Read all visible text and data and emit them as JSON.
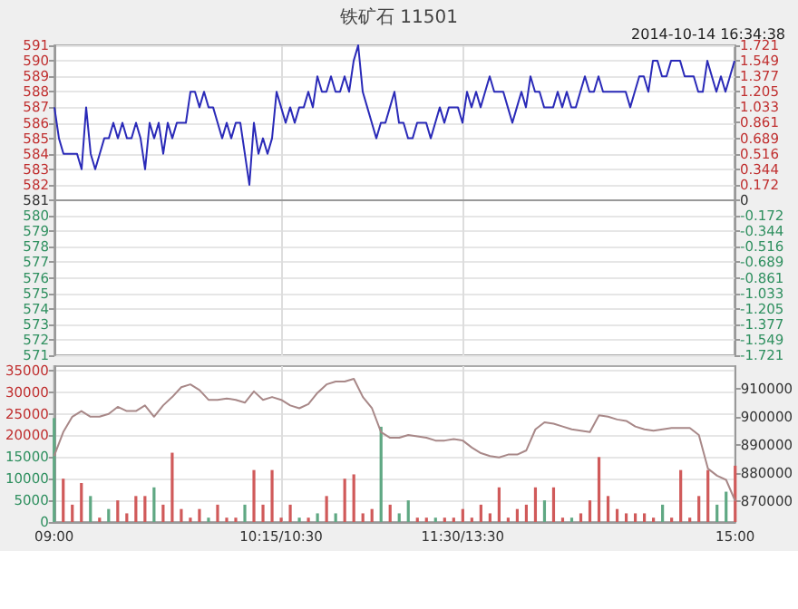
{
  "chart_data": [
    {
      "type": "line",
      "title": "铁矿石 11501",
      "subtitle": "2014-10-14 16:34:38",
      "categories": [
        null,
        null,
        null,
        null,
        null,
        null,
        null,
        null,
        null,
        null,
        null,
        null,
        null,
        null,
        null,
        null,
        null,
        null,
        null,
        null,
        null,
        null,
        null,
        null,
        null,
        null,
        null,
        null,
        null,
        null,
        null,
        null,
        null,
        null,
        null,
        null,
        null,
        null,
        null,
        null,
        null,
        null,
        null,
        null,
        null,
        null,
        null,
        null,
        null,
        null,
        null,
        null,
        null,
        null,
        null,
        null,
        null,
        null,
        null,
        null,
        null,
        null,
        null,
        null,
        null,
        null,
        null,
        null,
        null,
        null,
        null,
        null,
        null,
        null,
        null,
        null,
        null,
        null,
        null,
        null,
        null,
        null,
        null,
        null,
        null,
        null,
        null,
        null,
        null,
        null,
        null,
        null,
        null,
        null,
        null,
        null,
        null,
        null,
        null,
        null,
        null,
        null,
        null,
        null,
        null,
        null,
        null,
        null,
        null,
        null,
        null,
        null,
        null,
        null,
        null,
        null,
        null,
        null,
        null,
        null,
        null,
        null,
        null,
        null,
        null,
        null,
        null,
        null,
        null,
        null,
        null,
        null,
        null,
        null,
        null,
        null,
        null,
        null,
        null,
        null,
        null,
        null,
        null,
        null,
        null,
        null,
        null,
        null,
        null,
        null,
        null
      ],
      "series": [
        {
          "color": "#2a2ab8",
          "values": [
            587,
            585,
            584,
            584,
            584,
            584,
            583,
            587,
            584,
            583,
            584,
            585,
            585,
            586,
            585,
            586,
            585,
            585,
            586,
            585,
            583,
            586,
            585,
            586,
            584,
            586,
            585,
            586,
            586,
            586,
            588,
            588,
            587,
            588,
            587,
            587,
            586,
            585,
            586,
            585,
            586,
            586,
            584,
            582,
            586,
            584,
            585,
            584,
            585,
            588,
            587,
            586,
            587,
            586,
            587,
            587,
            588,
            587,
            589,
            588,
            588,
            589,
            588,
            588,
            589,
            588,
            590,
            591,
            588,
            587,
            586,
            585,
            586,
            586,
            587,
            588,
            586,
            586,
            585,
            585,
            586,
            586,
            586,
            585,
            586,
            587,
            586,
            587,
            587,
            587,
            586,
            588,
            587,
            588,
            587,
            588,
            589,
            588,
            588,
            588,
            587,
            586,
            587,
            588,
            587,
            589,
            588,
            588,
            587,
            587,
            587,
            588,
            587,
            588,
            587,
            587,
            588,
            589,
            588,
            588,
            589,
            588,
            588,
            588,
            588,
            588,
            588,
            587,
            588,
            589,
            589,
            588,
            590,
            590,
            589,
            589,
            590,
            590,
            590,
            589,
            589,
            589,
            588,
            588,
            590,
            589,
            588,
            589,
            588,
            589,
            590
          ]
        }
      ],
      "ylim": [
        571,
        591
      ],
      "yticks": [
        571,
        572,
        573,
        574,
        575,
        576,
        577,
        578,
        579,
        580,
        581,
        582,
        583,
        584,
        585,
        586,
        587,
        588,
        589,
        590,
        591
      ],
      "y2lim": [
        -1.721,
        1.721
      ],
      "y2ticks": [
        -1.721,
        -1.549,
        -1.377,
        -1.205,
        -1.033,
        -0.861,
        -0.689,
        -0.516,
        -0.344,
        -0.172,
        0,
        0.172,
        0.344,
        0.516,
        0.689,
        0.861,
        1.033,
        1.205,
        1.377,
        1.549,
        1.721
      ],
      "grid": true,
      "tick_labels": "y"
    },
    {
      "type": "bar",
      "categories": [
        "09:00",
        null,
        null,
        null,
        null,
        null,
        null,
        null,
        null,
        null,
        null,
        null,
        null,
        null,
        null,
        null,
        null,
        null,
        null,
        null,
        null,
        null,
        null,
        null,
        null,
        "10:15/10:30",
        null,
        null,
        null,
        null,
        null,
        null,
        null,
        null,
        null,
        null,
        null,
        null,
        null,
        null,
        null,
        null,
        null,
        null,
        null,
        "11:30/13:30",
        null,
        null,
        null,
        null,
        null,
        null,
        null,
        null,
        null,
        null,
        null,
        null,
        null,
        null,
        null,
        null,
        null,
        null,
        null,
        null,
        null,
        null,
        null,
        null,
        null,
        null,
        null,
        null,
        null,
        "15:00"
      ],
      "series": [
        {
          "type": "bar",
          "values": [
            24000,
            10000,
            4000,
            9000,
            6000,
            1000,
            3000,
            5000,
            2000,
            6000,
            6000,
            8000,
            4000,
            16000,
            3000,
            1000,
            3000,
            1000,
            4000,
            1000,
            1000,
            4000,
            12000,
            4000,
            12000,
            1000,
            4000,
            1000,
            1000,
            2000,
            6000,
            2000,
            10000,
            11000,
            2000,
            3000,
            22000,
            4000,
            2000,
            5000,
            1000,
            1000,
            1000,
            1000,
            1000,
            3000,
            1000,
            4000,
            2000,
            8000,
            1000,
            3000,
            4000,
            8000,
            5000,
            8000,
            1000,
            1000,
            2000,
            5000,
            15000,
            6000,
            3000,
            2000,
            2000,
            2000,
            1000,
            4000,
            1000,
            12000,
            1000,
            6000,
            12000,
            4000,
            7000,
            13000
          ],
          "colors": [
            "#5fa883",
            "#d05a5a",
            "#d05a5a",
            "#d05a5a",
            "#5fa883",
            "#d05a5a",
            "#5fa883",
            "#d05a5a",
            "#d05a5a",
            "#d05a5a",
            "#d05a5a",
            "#5fa883",
            "#d05a5a",
            "#d05a5a",
            "#d05a5a",
            "#d05a5a",
            "#d05a5a",
            "#5fa883",
            "#d05a5a",
            "#d05a5a",
            "#d05a5a",
            "#5fa883",
            "#d05a5a",
            "#d05a5a",
            "#d05a5a",
            "#d05a5a",
            "#d05a5a",
            "#5fa883",
            "#d05a5a",
            "#5fa883",
            "#d05a5a",
            "#5fa883",
            "#d05a5a",
            "#d05a5a",
            "#d05a5a",
            "#d05a5a",
            "#5fa883",
            "#d05a5a",
            "#5fa883",
            "#5fa883",
            "#d05a5a",
            "#d05a5a",
            "#5fa883",
            "#d05a5a",
            "#d05a5a",
            "#d05a5a",
            "#d05a5a",
            "#d05a5a",
            "#d05a5a",
            "#d05a5a",
            "#d05a5a",
            "#d05a5a",
            "#d05a5a",
            "#d05a5a",
            "#5fa883",
            "#d05a5a",
            "#d05a5a",
            "#5fa883",
            "#d05a5a",
            "#d05a5a",
            "#d05a5a",
            "#d05a5a",
            "#d05a5a",
            "#d05a5a",
            "#d05a5a",
            "#d05a5a",
            "#d05a5a",
            "#5fa883",
            "#d05a5a",
            "#d05a5a",
            "#d05a5a",
            "#d05a5a",
            "#d05a5a",
            "#5fa883",
            "#5fa883",
            "#d05a5a"
          ]
        },
        {
          "type": "line",
          "axis": "y2",
          "color": "#a88888",
          "values": [
            886000,
            894500,
            900000,
            902000,
            900000,
            900000,
            901000,
            903500,
            902000,
            902000,
            904000,
            900000,
            904000,
            907000,
            910500,
            911500,
            909500,
            906000,
            906000,
            906500,
            906000,
            905000,
            909000,
            906000,
            907000,
            906000,
            904000,
            903000,
            904500,
            908500,
            911500,
            912500,
            912500,
            913500,
            907000,
            903000,
            894500,
            892500,
            892500,
            893500,
            893000,
            892500,
            891500,
            891500,
            892000,
            891500,
            889000,
            887000,
            886000,
            885500,
            886500,
            886500,
            888000,
            895500,
            898000,
            897500,
            896500,
            895500,
            895000,
            894500,
            900500,
            900000,
            899000,
            898500,
            896500,
            895500,
            895000,
            895500,
            896000,
            896000,
            896000,
            893500,
            881500,
            879000,
            877500,
            870000
          ]
        }
      ],
      "ylim": [
        0,
        36000
      ],
      "yticks": [
        0,
        5000,
        10000,
        15000,
        20000,
        25000,
        30000,
        35000
      ],
      "y2lim": [
        862500,
        918000
      ],
      "y2ticks": [
        870000,
        880000,
        890000,
        900000,
        910000
      ],
      "grid": true
    }
  ]
}
